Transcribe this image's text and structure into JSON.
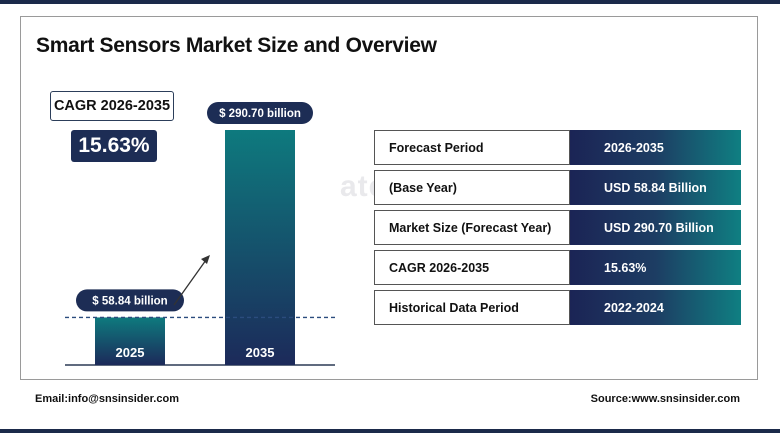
{
  "title": "Smart Sensors Market Size and Overview",
  "cagr": {
    "label": "CAGR 2026-2035",
    "value": "15.63%"
  },
  "watermark": "ategy  Stats",
  "chart_data": {
    "type": "bar",
    "categories": [
      "2025",
      "2035"
    ],
    "values": [
      58.84,
      290.7
    ],
    "data_labels": [
      "$ 58.84 billion",
      "$ 290.70 billion"
    ],
    "unit": "USD billion",
    "title": "",
    "xlabel": "",
    "ylabel": "",
    "ylim": [
      0,
      290.7
    ],
    "colors": {
      "bar_top": "#0e7a7e",
      "bar_bottom": "#1c2a5a",
      "label_bg": "#1d2d55",
      "dashed_line": "#2b4c7e"
    }
  },
  "table": {
    "rows": [
      {
        "label": "Forecast Period",
        "value": "2026-2035"
      },
      {
        "label": "(Base Year)",
        "value": "USD 58.84 Billion"
      },
      {
        "label": "Market Size (Forecast Year)",
        "value": "USD 290.70 Billion"
      },
      {
        "label": "CAGR 2026-2035",
        "value": "15.63%"
      },
      {
        "label": "Historical Data Period",
        "value": "2022-2024"
      }
    ]
  },
  "footer": {
    "email": "Email:info@snsinsider.com",
    "source": "Source:www.snsinsider.com"
  },
  "colors": {
    "navy": "#1b2a4a",
    "teal": "#0f7f82"
  }
}
